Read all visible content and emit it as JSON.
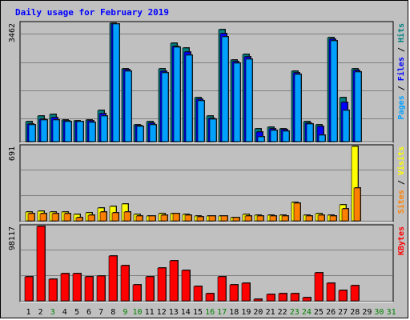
{
  "chart_data": [
    {
      "type": "bar",
      "panel": "hits-files-pages",
      "title": "Daily usage for February 2019",
      "ymax_label": "3462",
      "legend": [
        {
          "text": "Pages",
          "color": "#00a0ff"
        },
        {
          "text": " / ",
          "color": "#000000"
        },
        {
          "text": "Files",
          "color": "#0000ff"
        },
        {
          "text": " / ",
          "color": "#000000"
        },
        {
          "text": "Hits",
          "color": "#008080"
        }
      ],
      "ylim": [
        0,
        3462
      ],
      "categories": [
        "1",
        "2",
        "3",
        "4",
        "5",
        "6",
        "7",
        "8",
        "9",
        "10",
        "11",
        "12",
        "13",
        "14",
        "15",
        "16",
        "17",
        "18",
        "19",
        "20",
        "21",
        "22",
        "23",
        "24",
        "25",
        "26",
        "27",
        "28",
        "29",
        "30",
        "31"
      ],
      "series": [
        {
          "name": "Hits",
          "color": "#008080",
          "values": [
            575,
            739,
            788,
            624,
            608,
            624,
            903,
            3462,
            2135,
            493,
            575,
            2135,
            2873,
            2741,
            1297,
            739,
            3283,
            2380,
            2544,
            378,
            411,
            378,
            2052,
            575,
            493,
            3037,
            1297,
            2135,
            0,
            0,
            0
          ]
        },
        {
          "name": "Files",
          "color": "#0000ff",
          "values": [
            526,
            657,
            706,
            608,
            591,
            608,
            821,
            3447,
            2102,
            460,
            542,
            2052,
            2791,
            2626,
            1232,
            690,
            3168,
            2331,
            2479,
            279,
            378,
            345,
            2020,
            542,
            444,
            3004,
            1150,
            2085,
            0,
            0,
            0
          ]
        },
        {
          "name": "Pages",
          "color": "#00a0ff",
          "values": [
            493,
            624,
            641,
            591,
            575,
            558,
            755,
            3430,
            2069,
            444,
            493,
            2003,
            2758,
            2528,
            1199,
            657,
            3070,
            2282,
            2413,
            148,
            329,
            312,
            1954,
            509,
            197,
            2955,
            903,
            2036,
            0,
            0,
            0
          ]
        }
      ]
    },
    {
      "type": "bar",
      "panel": "visits-sites",
      "ymax_label": "691",
      "legend": [
        {
          "text": "Sites",
          "color": "#ff8000"
        },
        {
          "text": " / ",
          "color": "#000000"
        },
        {
          "text": "Visits",
          "color": "#ffff00"
        }
      ],
      "ylim": [
        0,
        691
      ],
      "categories": [
        "1",
        "2",
        "3",
        "4",
        "5",
        "6",
        "7",
        "8",
        "9",
        "10",
        "11",
        "12",
        "13",
        "14",
        "15",
        "16",
        "17",
        "18",
        "19",
        "20",
        "21",
        "22",
        "23",
        "24",
        "25",
        "26",
        "27",
        "28",
        "29",
        "30",
        "31"
      ],
      "series": [
        {
          "name": "Visits",
          "color": "#ffff00",
          "values": [
            81,
            87,
            81,
            81,
            60,
            75,
            117,
            135,
            159,
            60,
            48,
            70,
            70,
            60,
            48,
            48,
            48,
            32,
            60,
            54,
            54,
            54,
            173,
            54,
            65,
            54,
            146,
            691,
            0,
            0,
            0
          ]
        },
        {
          "name": "Sites",
          "color": "#ff8000",
          "values": [
            65,
            70,
            70,
            70,
            32,
            54,
            81,
            75,
            81,
            48,
            48,
            54,
            65,
            54,
            38,
            43,
            48,
            27,
            48,
            48,
            48,
            48,
            167,
            48,
            54,
            48,
            113,
            303,
            0,
            0,
            0
          ]
        }
      ]
    },
    {
      "type": "bar",
      "panel": "kbytes",
      "ymax_label": "98117",
      "legend": [
        {
          "text": "KBytes",
          "color": "#ff0000"
        }
      ],
      "ylim": [
        0,
        98117
      ],
      "categories": [
        "1",
        "2",
        "3",
        "4",
        "5",
        "6",
        "7",
        "8",
        "9",
        "10",
        "11",
        "12",
        "13",
        "14",
        "15",
        "16",
        "17",
        "18",
        "19",
        "20",
        "21",
        "22",
        "23",
        "24",
        "25",
        "26",
        "27",
        "28",
        "29",
        "30",
        "31"
      ],
      "series": [
        {
          "name": "KBytes",
          "color": "#ff0000",
          "values": [
            31500,
            98117,
            29000,
            35600,
            35600,
            31500,
            33200,
            59100,
            46600,
            21600,
            31500,
            43300,
            52500,
            40000,
            19100,
            10000,
            31500,
            21600,
            23300,
            1700,
            8300,
            10000,
            10000,
            4100,
            36400,
            23300,
            13300,
            20000,
            0,
            0,
            0
          ]
        }
      ]
    }
  ],
  "x_labels": [
    {
      "text": "1",
      "color": "#000000"
    },
    {
      "text": "2",
      "color": "#000000"
    },
    {
      "text": "3",
      "color": "#008000"
    },
    {
      "text": "4",
      "color": "#000000"
    },
    {
      "text": "5",
      "color": "#000000"
    },
    {
      "text": "6",
      "color": "#000000"
    },
    {
      "text": "7",
      "color": "#000000"
    },
    {
      "text": "8",
      "color": "#000000"
    },
    {
      "text": "9",
      "color": "#008000"
    },
    {
      "text": "10",
      "color": "#008000"
    },
    {
      "text": "11",
      "color": "#000000"
    },
    {
      "text": "12",
      "color": "#000000"
    },
    {
      "text": "13",
      "color": "#000000"
    },
    {
      "text": "14",
      "color": "#000000"
    },
    {
      "text": "15",
      "color": "#000000"
    },
    {
      "text": "16",
      "color": "#008000"
    },
    {
      "text": "17",
      "color": "#008000"
    },
    {
      "text": "18",
      "color": "#000000"
    },
    {
      "text": "19",
      "color": "#000000"
    },
    {
      "text": "20",
      "color": "#000000"
    },
    {
      "text": "21",
      "color": "#000000"
    },
    {
      "text": "22",
      "color": "#000000"
    },
    {
      "text": "23",
      "color": "#008000"
    },
    {
      "text": "24",
      "color": "#008000"
    },
    {
      "text": "25",
      "color": "#000000"
    },
    {
      "text": "26",
      "color": "#000000"
    },
    {
      "text": "27",
      "color": "#000000"
    },
    {
      "text": "28",
      "color": "#000000"
    },
    {
      "text": "29",
      "color": "#000000"
    },
    {
      "text": "30",
      "color": "#008000"
    },
    {
      "text": "31",
      "color": "#008000"
    }
  ],
  "colors": {
    "background": "#c0c0c0",
    "plot_background": "#c0c0c0",
    "gridline": "#808080",
    "title": "#0000ff"
  }
}
